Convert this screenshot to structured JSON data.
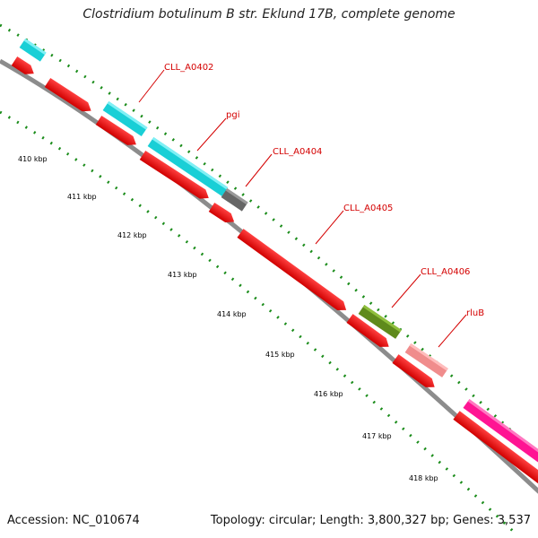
{
  "title": "Clostridium botulinum B str. Eklund 17B, complete genome",
  "accession": "Accession: NC_010674",
  "topology": "Topology: circular; Length: 3,800,327 bp; Genes: 3,537",
  "gene_labels": [
    "CLL_A0402",
    "pgi",
    "CLL_A0404",
    "CLL_A0405",
    "CLL_A0406",
    "rluB"
  ],
  "kbp_labels": [
    "410 kbp",
    "411 kbp",
    "412 kbp",
    "413 kbp",
    "414 kbp",
    "415 kbp",
    "416 kbp",
    "417 kbp",
    "418 kbp"
  ],
  "colors": {
    "cds": "#ff0000",
    "cds_dark": "#b30000",
    "cyan": "#19cfd6",
    "gray": "#666666",
    "olive": "#5f8a1c",
    "salmon": "#f08c8c",
    "magenta": "#ff1493",
    "backbone": "#8c8c8c",
    "ticks": "#1a8c1a",
    "label": "#d40000"
  }
}
